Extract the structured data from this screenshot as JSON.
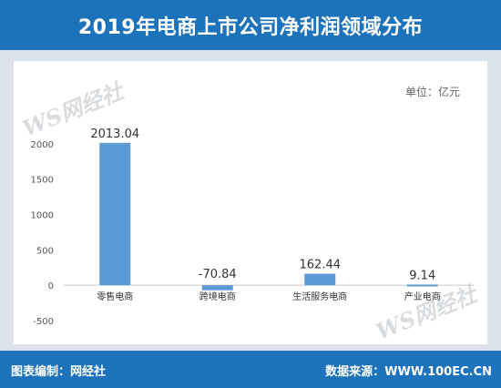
{
  "header": {
    "title": "2019年电商上市公司净利润领域分布"
  },
  "panel": {
    "unit": "单位：亿元"
  },
  "watermark": {
    "text": "WS网经社"
  },
  "footer": {
    "compiled_by": "图表编制：网经社",
    "source": "数据来源：WWW.100EC.CN"
  },
  "colors": {
    "brand_blue": "#1d73bb",
    "bar": "#5b9bd5"
  },
  "chart_data": {
    "type": "bar",
    "title": "2019年电商上市公司净利润领域分布",
    "categories": [
      "零售电商",
      "跨境电商",
      "生活服务电商",
      "产业电商"
    ],
    "values": [
      2013.04,
      -70.84,
      162.44,
      9.14
    ],
    "value_labels": [
      "2013.04",
      "-70.84",
      "162.44",
      "9.14"
    ],
    "yticks": [
      -500,
      0,
      500,
      1000,
      1500,
      2000,
      2500
    ],
    "ylim": [
      -500,
      2500
    ],
    "grid": false,
    "legend": false
  }
}
